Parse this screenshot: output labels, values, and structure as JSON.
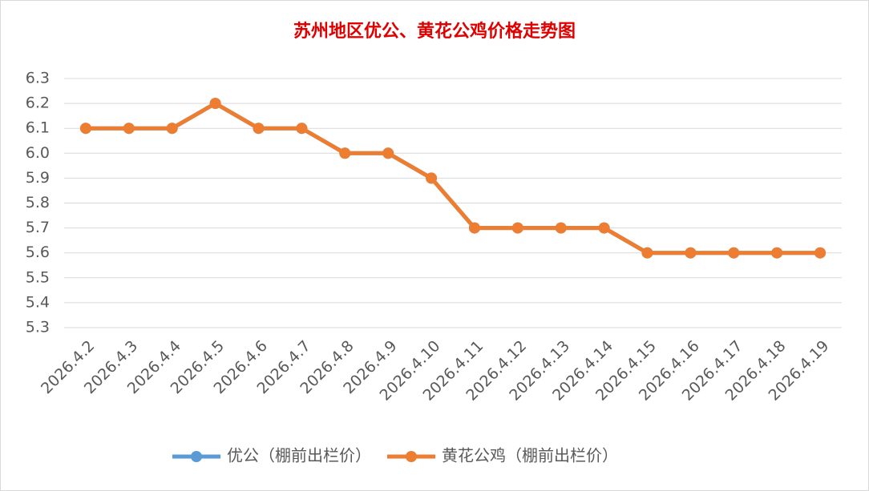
{
  "chart_data": {
    "type": "line",
    "title": "苏州地区优公、黄花公鸡价格走势图",
    "categories": [
      "2026.4.2",
      "2026.4.3",
      "2026.4.4",
      "2026.4.5",
      "2026.4.6",
      "2026.4.7",
      "2026.4.8",
      "2026.4.9",
      "2026.4.10",
      "2026.4.11",
      "2026.4.12",
      "2026.4.13",
      "2026.4.14",
      "2026.4.15",
      "2026.4.16",
      "2026.4.17",
      "2026.4.18",
      "2026.4.19"
    ],
    "series": [
      {
        "name": "优公（棚前出栏价）",
        "color": "#5b9bd5",
        "values": [
          6.1,
          6.1,
          6.1,
          6.2,
          6.1,
          6.1,
          6.0,
          6.0,
          5.9,
          5.7,
          5.7,
          5.7,
          5.7,
          5.6,
          5.6,
          5.6,
          5.6,
          5.6
        ]
      },
      {
        "name": "黄花公鸡（棚前出栏价）",
        "color": "#ed7d31",
        "values": [
          6.1,
          6.1,
          6.1,
          6.2,
          6.1,
          6.1,
          6.0,
          6.0,
          5.9,
          5.7,
          5.7,
          5.7,
          5.7,
          5.6,
          5.6,
          5.6,
          5.6,
          5.6
        ]
      }
    ],
    "ylim": [
      5.3,
      6.3
    ],
    "yticks": [
      5.3,
      5.4,
      5.5,
      5.6,
      5.7,
      5.8,
      5.9,
      {
        "value": 6,
        "label": "6.0"
      },
      6.1,
      6.2,
      6.3
    ],
    "grid": true,
    "legend": "bottom"
  }
}
